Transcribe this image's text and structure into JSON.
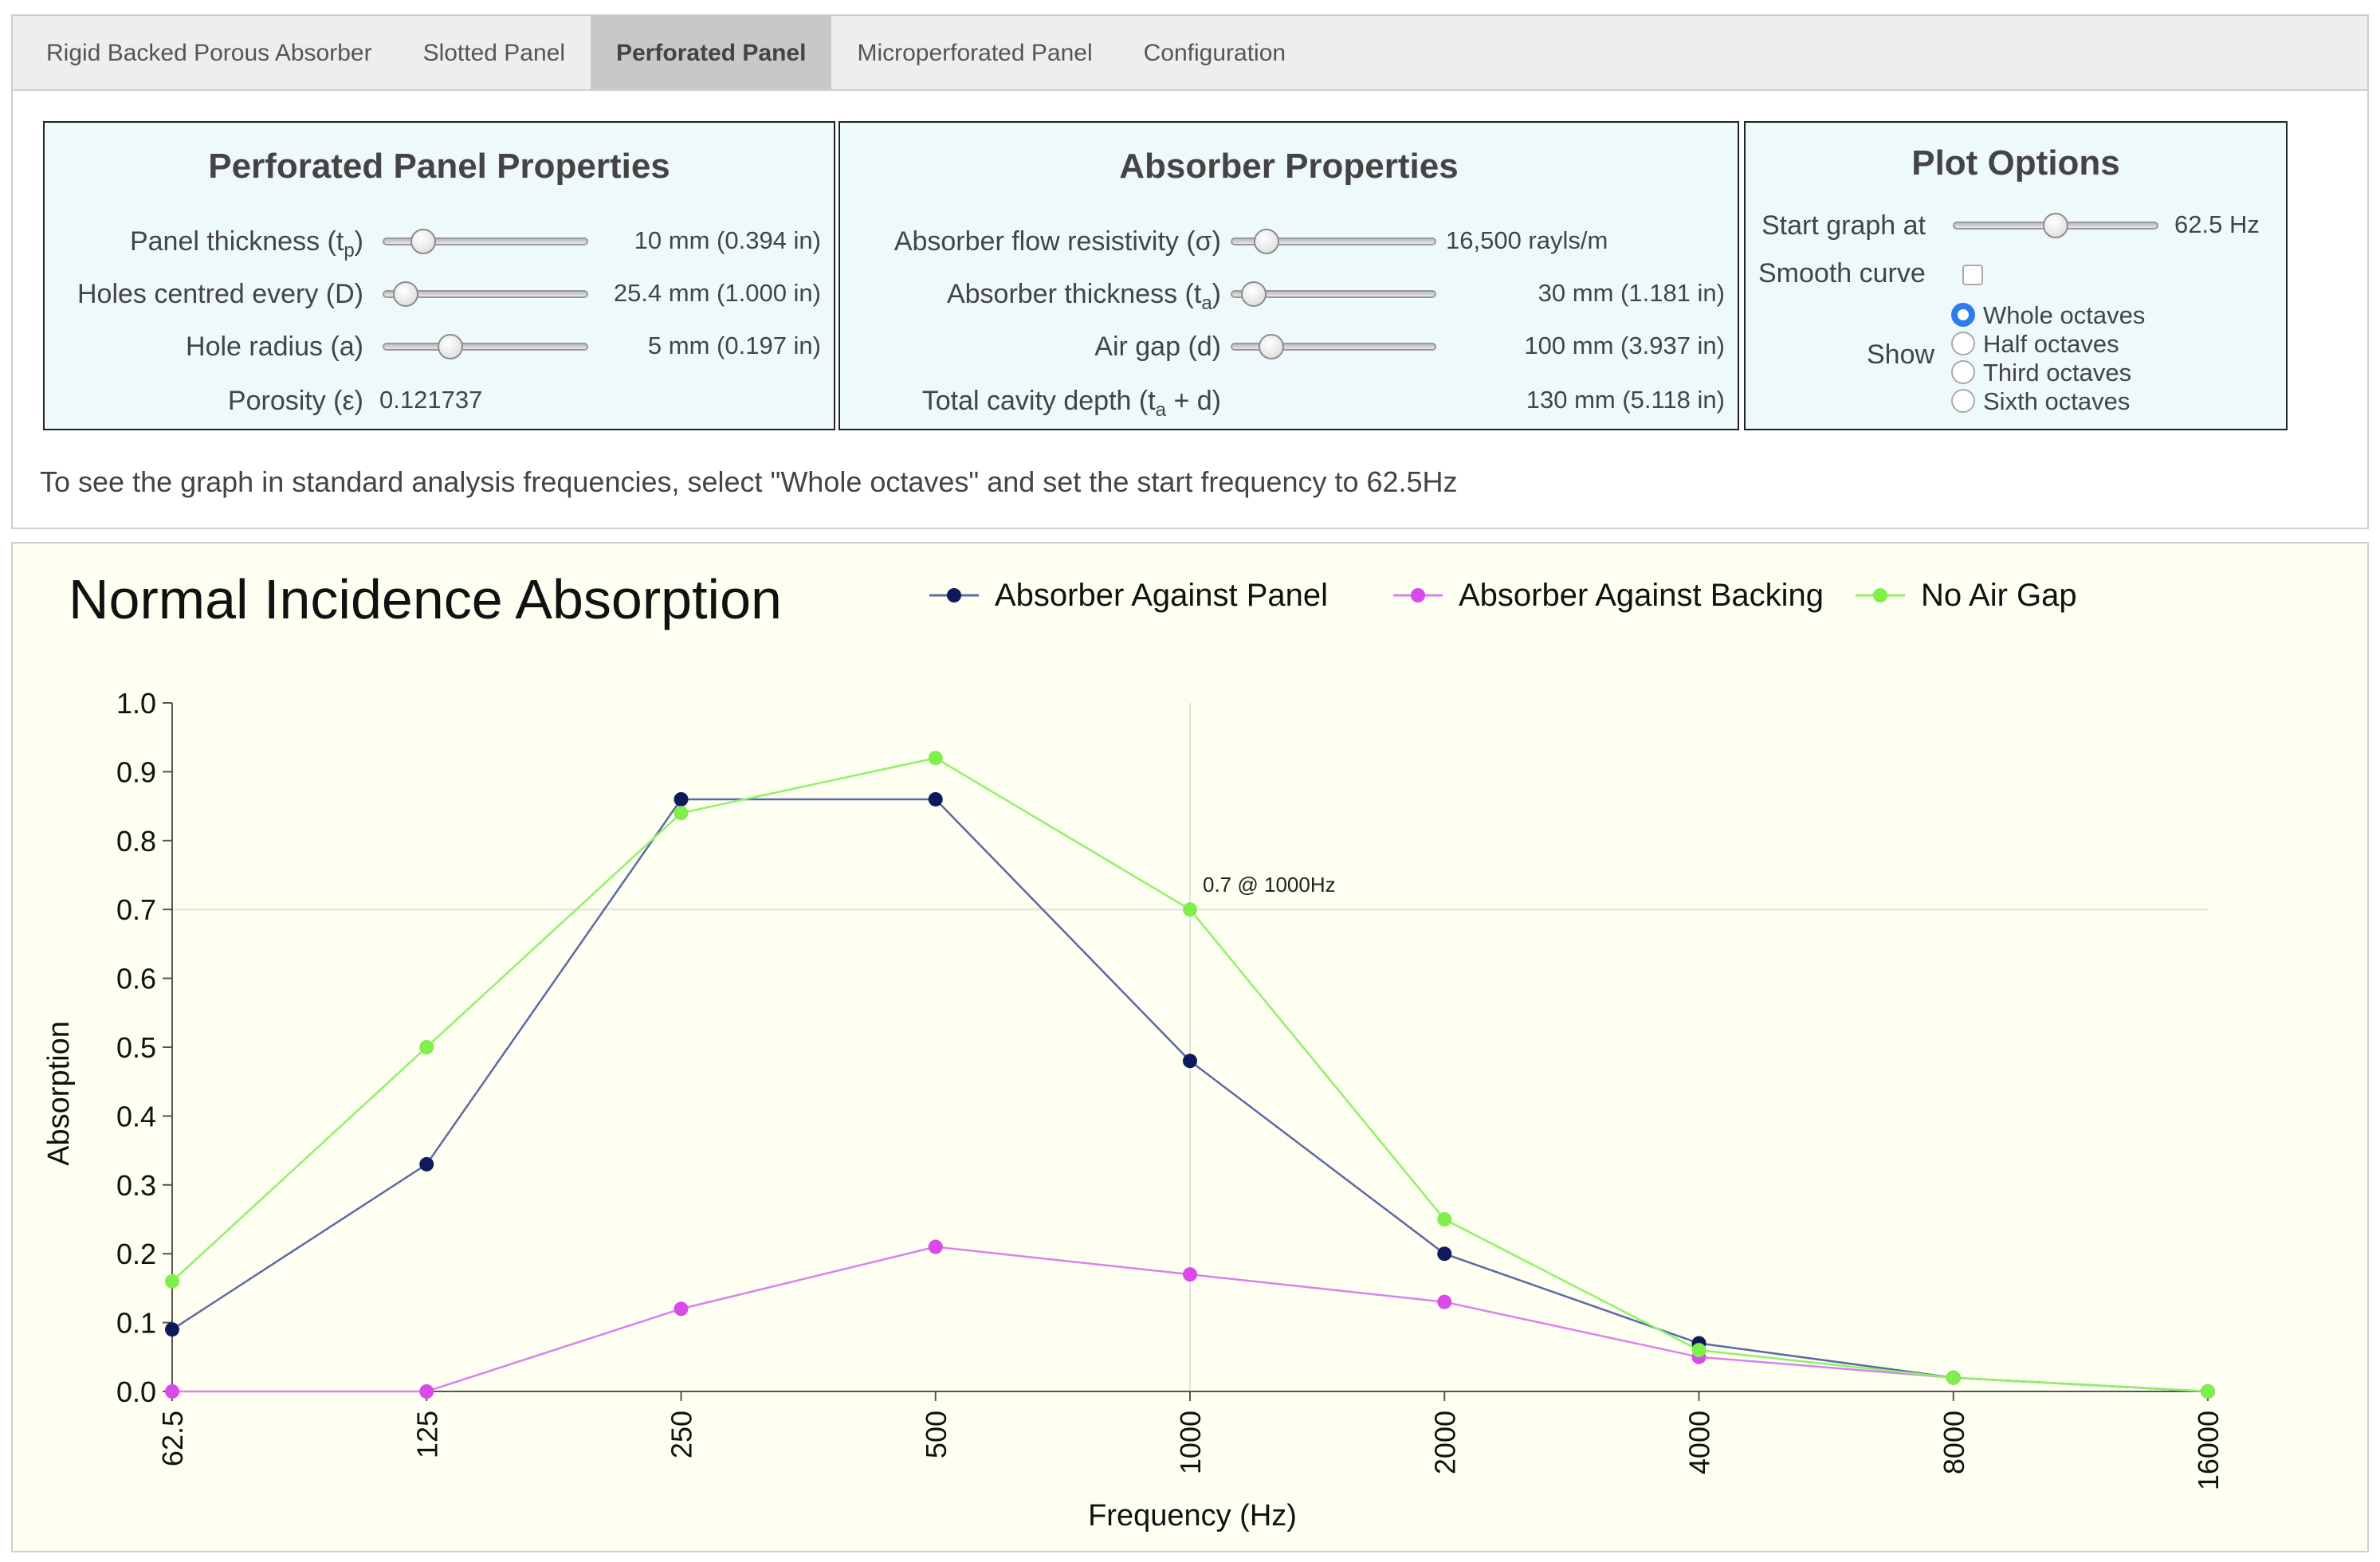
{
  "tabs": [
    {
      "label": "Rigid Backed Porous Absorber",
      "active": false
    },
    {
      "label": "Slotted Panel",
      "active": false
    },
    {
      "label": "Perforated Panel",
      "active": true
    },
    {
      "label": "Microperforated Panel",
      "active": false
    },
    {
      "label": "Configuration",
      "active": false
    }
  ],
  "panel_props": {
    "title": "Perforated Panel Properties",
    "thickness": {
      "label": "Panel thickness (t",
      "sub": "p",
      "close": ")",
      "value": "10 mm  (0.394 in)",
      "fraction": 0.15
    },
    "holes": {
      "label": "Holes centred every (D)",
      "value": "25.4 mm  (1.000 in)",
      "fraction": 0.05
    },
    "radius": {
      "label": "Hole radius (a)",
      "value": "5 mm  (0.197 in)",
      "fraction": 0.3
    },
    "porosity": {
      "label": "Porosity (ε)",
      "value": "0.121737"
    }
  },
  "absorber_props": {
    "title": "Absorber Properties",
    "resistivity": {
      "label": "Absorber flow resistivity (σ)",
      "value": "16,500 rayls/m",
      "fraction": 0.12
    },
    "thickness": {
      "label": "Absorber thickness (t",
      "sub": "a",
      "close": ")",
      "value": "30 mm  (1.181 in)",
      "fraction": 0.05
    },
    "airgap": {
      "label": "Air gap (d)",
      "value": "100 mm  (3.937 in)",
      "fraction": 0.15
    },
    "total": {
      "label": "Total cavity depth (t",
      "sub": "a",
      "close": " + d)",
      "value": "130 mm  (5.118 in)"
    }
  },
  "plot_options": {
    "title": "Plot Options",
    "start_label": "Start graph at",
    "start_value": "62.5 Hz",
    "start_fraction": 0.5,
    "smooth_label": "Smooth curve",
    "show_label": "Show",
    "options": [
      "Whole octaves",
      "Half octaves",
      "Third octaves",
      "Sixth octaves"
    ],
    "selected": 0
  },
  "note": "To see the graph in standard analysis frequencies, select \"Whole octaves\" and set the start frequency to 62.5Hz",
  "chart_data": {
    "type": "line",
    "title": "Normal Incidence Absorption",
    "xlabel": "Frequency (Hz)",
    "ylabel": "Absorption",
    "categories": [
      "62.5",
      "125",
      "250",
      "500",
      "1000",
      "2000",
      "4000",
      "8000",
      "16000"
    ],
    "yticks": [
      "0.0",
      "0.1",
      "0.2",
      "0.3",
      "0.4",
      "0.5",
      "0.6",
      "0.7",
      "0.8",
      "0.9",
      "1.0"
    ],
    "ylim": [
      0,
      1
    ],
    "series": [
      {
        "name": "Absorber Against Panel",
        "line": "#5a6aa8",
        "dot": "#0f1a5c",
        "values": [
          0.09,
          0.33,
          0.86,
          0.86,
          0.48,
          0.2,
          0.07,
          0.02,
          0.0
        ]
      },
      {
        "name": "Absorber Against Backing",
        "line": "#dc80ee",
        "dot": "#d94ae8",
        "values": [
          0.0,
          0.0,
          0.12,
          0.21,
          0.17,
          0.13,
          0.05,
          0.02,
          0.0
        ]
      },
      {
        "name": "No Air Gap",
        "line": "#8ef26a",
        "dot": "#7fef4e",
        "values": [
          0.16,
          0.5,
          0.84,
          0.92,
          0.7,
          0.25,
          0.06,
          0.02,
          0.0
        ]
      }
    ],
    "annotation": {
      "text": "0.7 @ 1000Hz",
      "x_index": 4,
      "y": 0.7
    },
    "legend_position": "top"
  }
}
